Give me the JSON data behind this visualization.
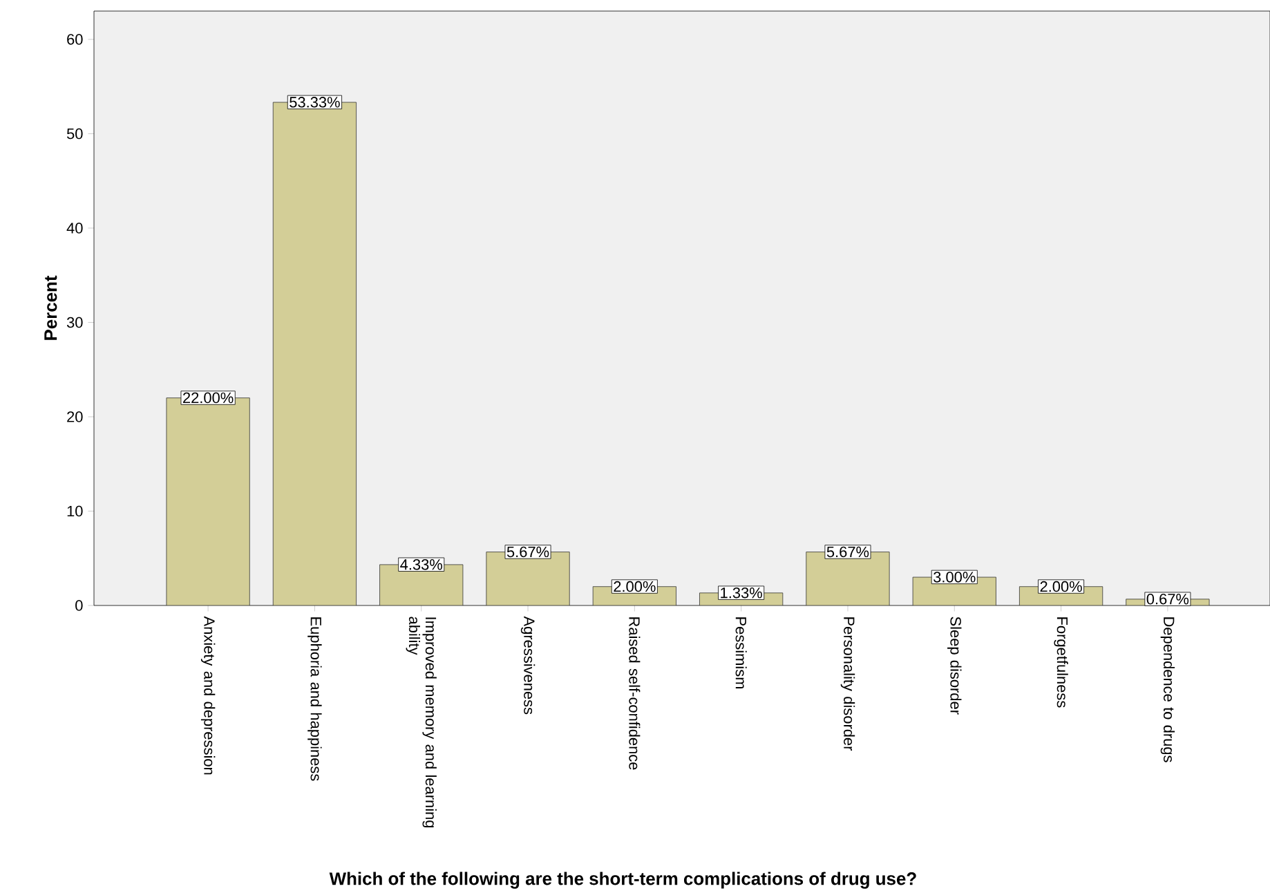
{
  "chart_data": {
    "type": "bar",
    "xlabel": "Which of the following are the short-term complications of drug use?",
    "ylabel": "Percent",
    "categories": [
      "Anxiety and depression",
      "Euphoria and happiness",
      "Improved memory and learning ability",
      "Agressiveness",
      "Raised self-confidence",
      "Pessimism",
      "Personality disorder",
      "Sleep disorder",
      "Forgetfulness",
      "Dependence to drugs"
    ],
    "values": [
      22.0,
      53.33,
      4.33,
      5.67,
      2.0,
      1.33,
      5.67,
      3.0,
      2.0,
      0.67
    ],
    "value_labels": [
      "22.00%",
      "53.33%",
      "4.33%",
      "5.67%",
      "2.00%",
      "1.33%",
      "5.67%",
      "3.00%",
      "2.00%",
      "0.67%"
    ],
    "color": "#d3ce97",
    "ylim": [
      0,
      63
    ],
    "yticks": [
      0,
      10,
      20,
      30,
      40,
      50,
      60
    ]
  }
}
